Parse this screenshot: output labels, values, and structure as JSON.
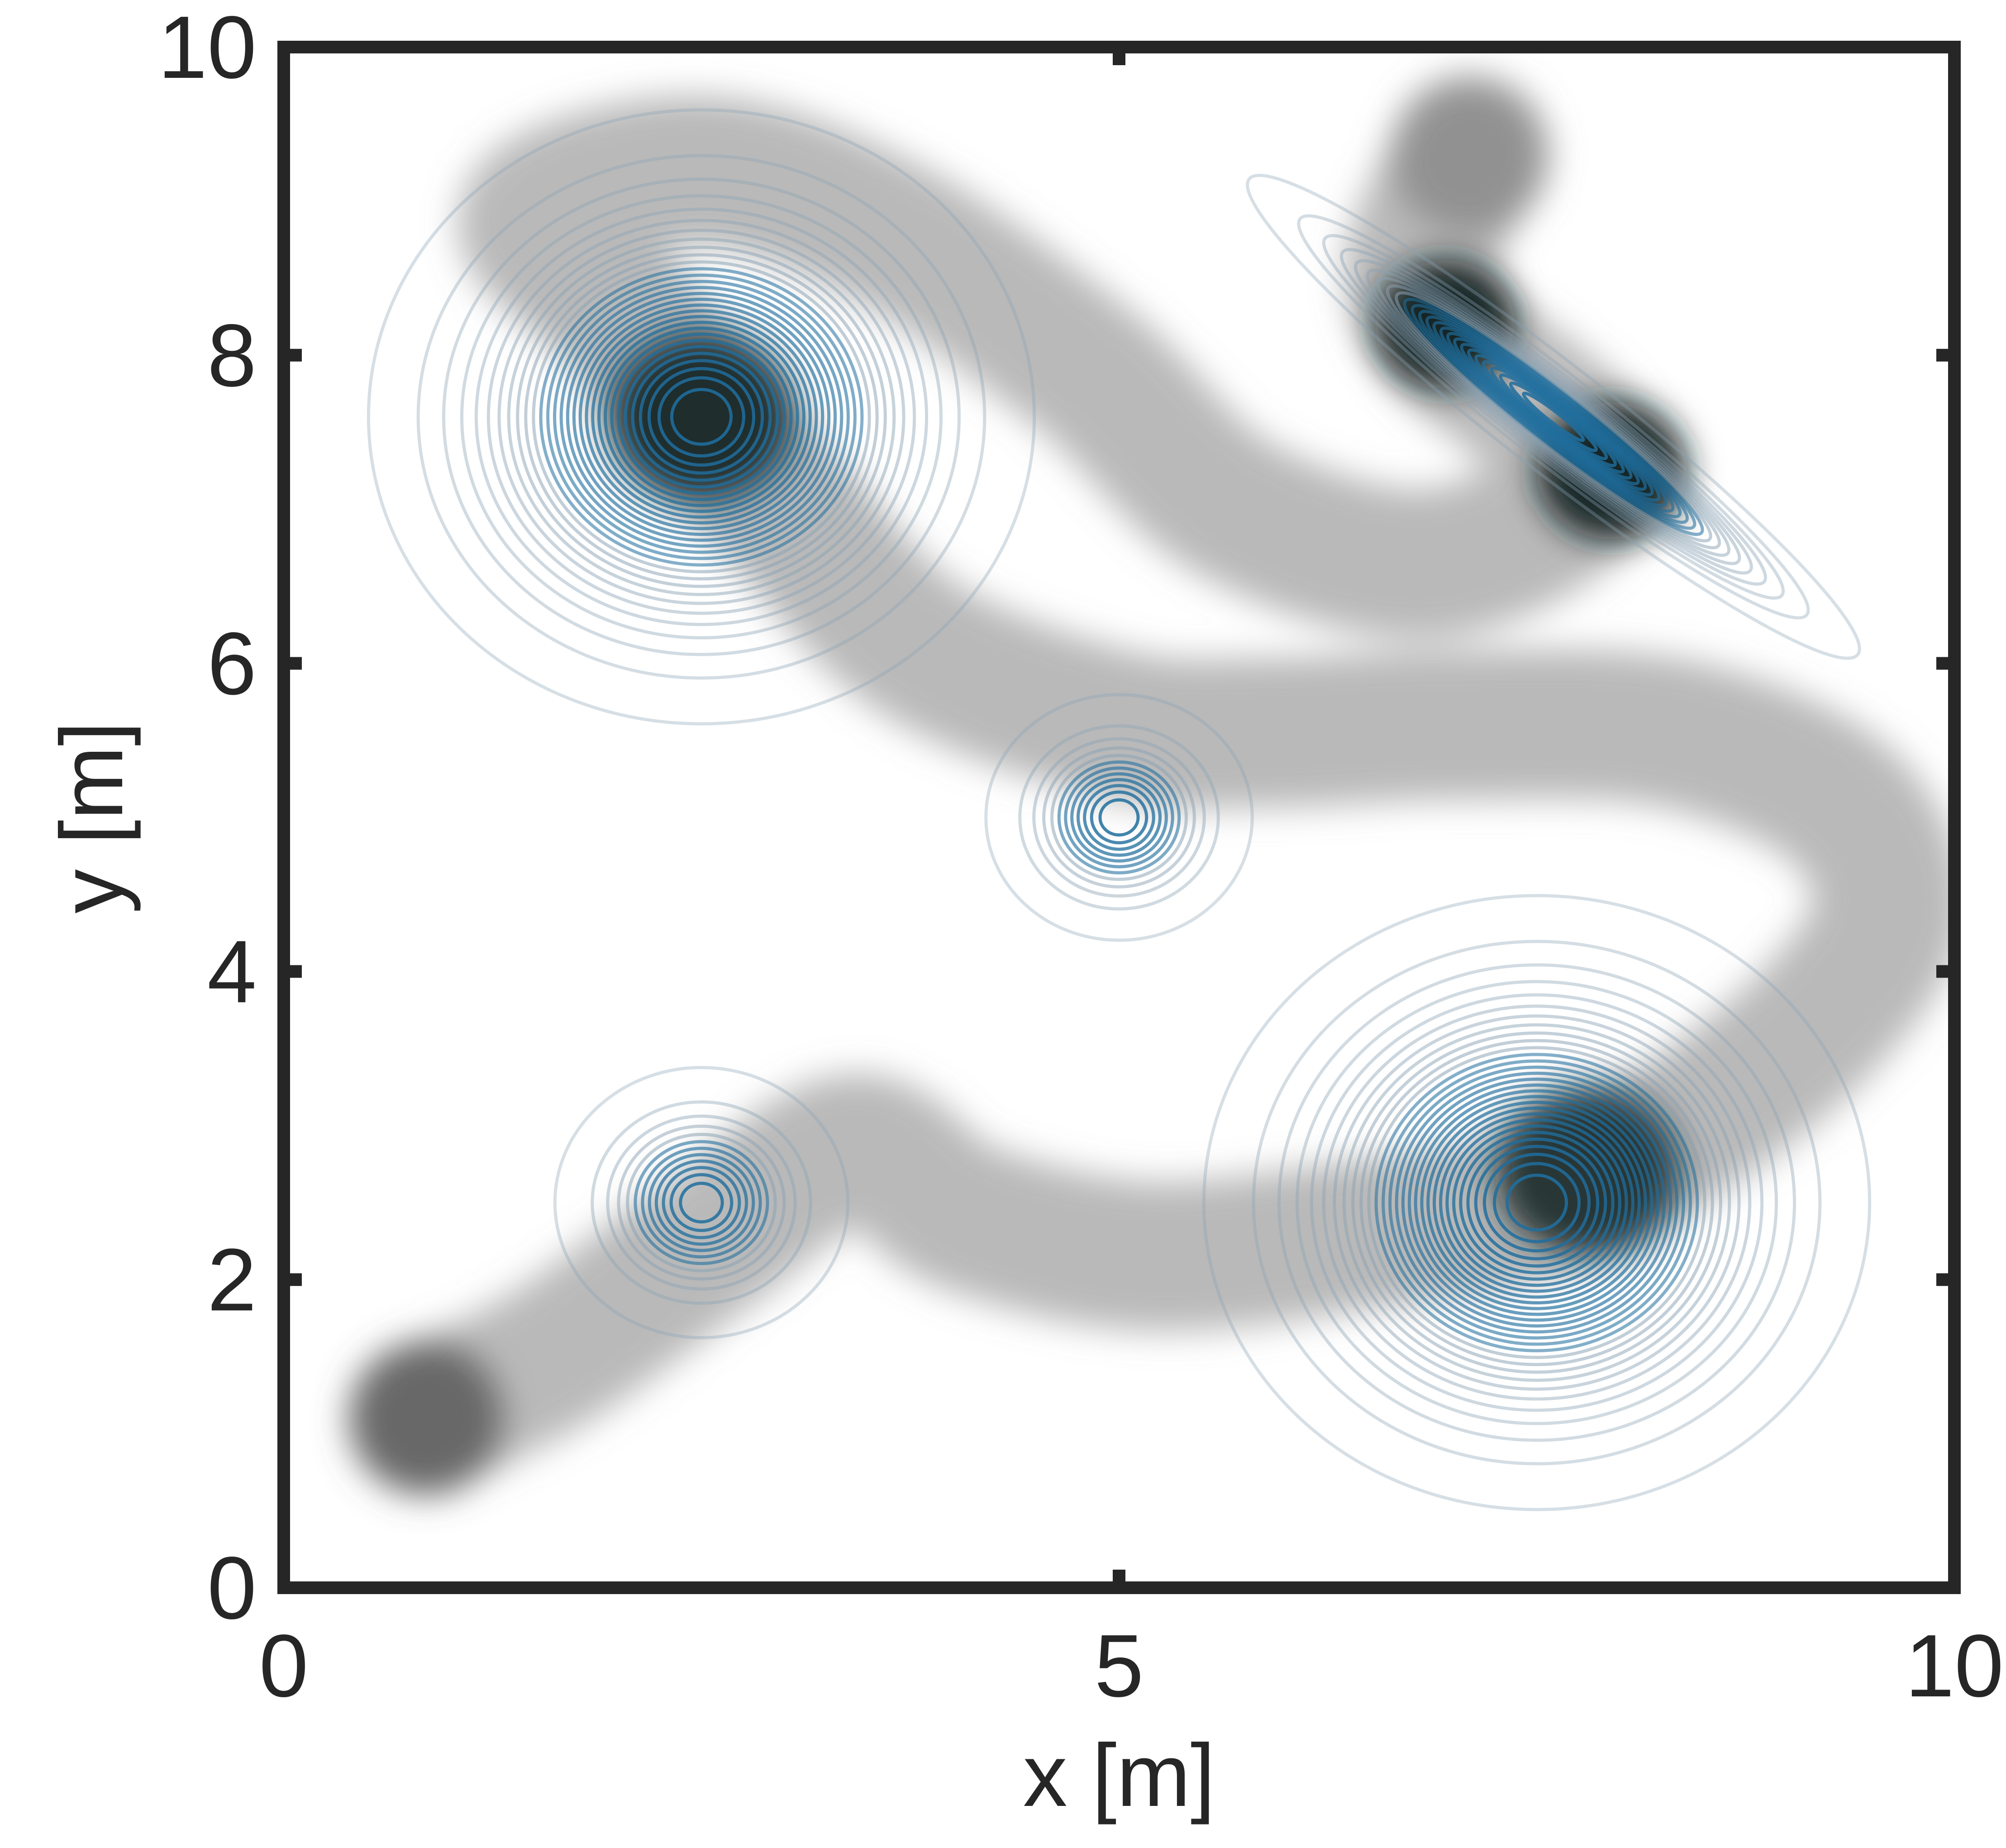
{
  "chart_data": {
    "type": "contour",
    "title": "",
    "xlabel": "x [m]",
    "ylabel": "y [m]",
    "xlim": [
      0,
      10
    ],
    "ylim": [
      0,
      10
    ],
    "xticks": [
      0,
      5,
      10
    ],
    "yticks": [
      0,
      2,
      4,
      6,
      8,
      10
    ],
    "grid": false,
    "legend": "none",
    "colors": {
      "contour": "#1f6e9e",
      "contour_outer": "#8aa2b4",
      "trajectory": "#808080",
      "axes": "#262626"
    },
    "density_components": [
      {
        "name": "peak-top-left",
        "x": 2.5,
        "y": 7.6,
        "sx": 1.25,
        "sy": 1.25,
        "rho": 0,
        "weight": 1.0,
        "levels": 30
      },
      {
        "name": "peak-top-right",
        "x": 7.6,
        "y": 7.6,
        "sx": 1.0,
        "sy": 0.55,
        "rho": -0.85,
        "weight": 1.0,
        "levels": 25
      },
      {
        "name": "peak-center",
        "x": 5.0,
        "y": 5.0,
        "sx": 0.5,
        "sy": 0.5,
        "rho": 0,
        "weight": 0.9,
        "levels": 12
      },
      {
        "name": "peak-bottom-left",
        "x": 2.5,
        "y": 2.5,
        "sx": 0.55,
        "sy": 0.55,
        "rho": 0,
        "weight": 0.9,
        "levels": 12
      },
      {
        "name": "peak-bottom-right",
        "x": 7.5,
        "y": 2.5,
        "sx": 1.25,
        "sy": 1.25,
        "rho": 0,
        "weight": 1.0,
        "levels": 30
      }
    ],
    "trajectory": [
      [
        0.85,
        1.1
      ],
      [
        1.6,
        1.5
      ],
      [
        2.5,
        2.2
      ],
      [
        3.4,
        2.85
      ],
      [
        4.1,
        2.4
      ],
      [
        5.2,
        2.15
      ],
      [
        6.5,
        2.3
      ],
      [
        7.5,
        2.5
      ],
      [
        8.4,
        3.0
      ],
      [
        9.2,
        3.7
      ],
      [
        9.6,
        4.4
      ],
      [
        9.3,
        5.1
      ],
      [
        8.3,
        5.55
      ],
      [
        7.0,
        5.6
      ],
      [
        5.9,
        5.55
      ],
      [
        5.0,
        5.6
      ],
      [
        3.8,
        6.1
      ],
      [
        3.0,
        7.0
      ],
      [
        2.5,
        7.6
      ],
      [
        2.0,
        8.3
      ],
      [
        1.5,
        8.9
      ],
      [
        2.5,
        9.2
      ],
      [
        3.6,
        8.8
      ],
      [
        4.8,
        7.9
      ],
      [
        5.7,
        7.0
      ],
      [
        6.9,
        6.65
      ],
      [
        7.8,
        7.25
      ],
      [
        7.0,
        8.1
      ],
      [
        6.8,
        8.6
      ],
      [
        7.1,
        9.3
      ]
    ],
    "trajectory_start": [
      0.85,
      1.1
    ],
    "trajectory_end": [
      7.1,
      9.3
    ]
  }
}
